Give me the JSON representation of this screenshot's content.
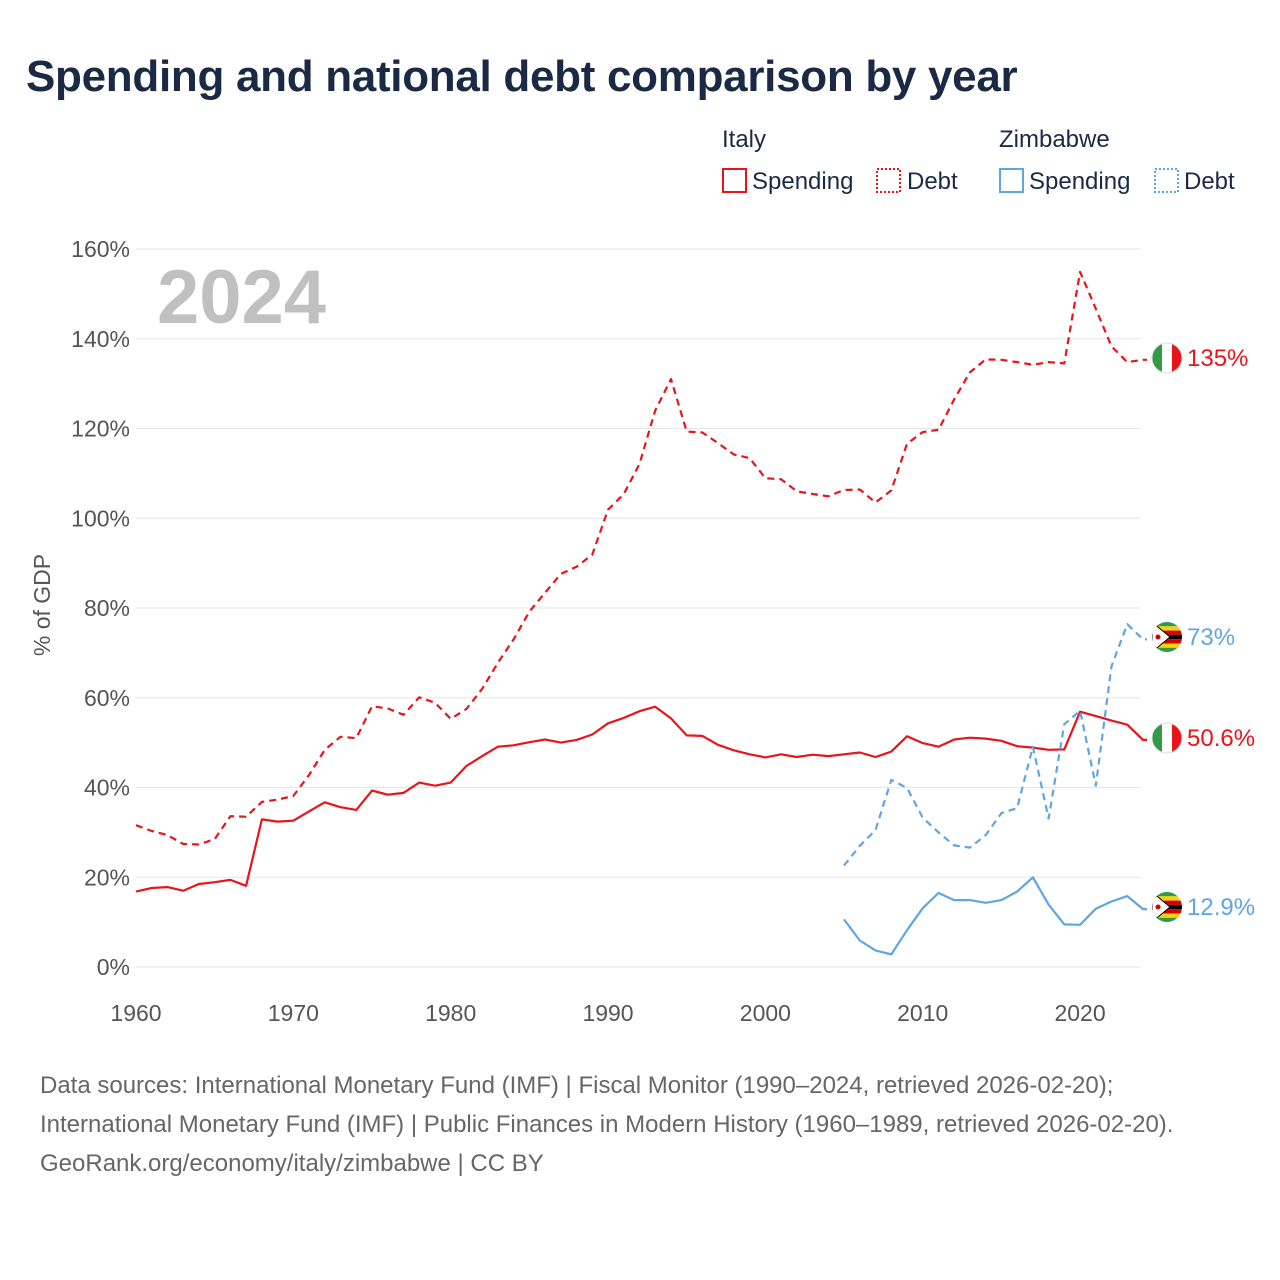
{
  "title": "Spending and national debt comparison by year",
  "year_label": "2024",
  "legend": {
    "groups": [
      {
        "name": "Italy",
        "items": [
          "Spending",
          "Debt"
        ]
      },
      {
        "name": "Zimbabwe",
        "items": [
          "Spending",
          "Debt"
        ]
      }
    ]
  },
  "end_labels": [
    "135%",
    "73%",
    "50.6%",
    "12.9%"
  ],
  "footer": {
    "sources": "Data sources: International Monetary Fund (IMF) | Fiscal Monitor (1990–2024, retrieved 2026-02-20); International Monetary Fund (IMF) | Public Finances in Modern History (1960–1989, retrieved 2026-02-20).",
    "credit": "GeoRank.org/economy/italy/zimbabwe | CC BY"
  },
  "colors": {
    "italy": "#e8141b",
    "zimbabwe": "#5ea6e2",
    "title": "#1b2a44",
    "grid": "#e6e6e6",
    "axis_text": "#555555",
    "year": "#c0c0c0"
  },
  "chart_data": {
    "type": "line",
    "title": "Spending and national debt comparison by year",
    "xlabel": "",
    "ylabel": "% of GDP",
    "xlim": [
      1960,
      2024
    ],
    "ylim": [
      0,
      160
    ],
    "x_ticks": [
      1960,
      1970,
      1980,
      1990,
      2000,
      2010,
      2020
    ],
    "y_ticks": [
      0,
      20,
      40,
      60,
      80,
      100,
      120,
      140,
      160
    ],
    "y_tick_labels": [
      "0%",
      "20%",
      "40%",
      "60%",
      "80%",
      "100%",
      "120%",
      "140%",
      "160%"
    ],
    "x_tick_labels": [
      "1960",
      "1970",
      "1980",
      "1990",
      "2000",
      "2010",
      "2020"
    ],
    "legend_position": "top-right",
    "series": [
      {
        "key": "italy-spending",
        "name": "Italy Spending",
        "country": "italy",
        "style": "solid",
        "end_label": "50.6%",
        "x_start": 1960,
        "values": [
          16.8,
          17.6,
          17.8,
          17.0,
          18.5,
          18.9,
          19.4,
          18.1,
          32.9,
          32.4,
          32.6,
          34.7,
          36.7,
          35.6,
          35.0,
          39.3,
          38.4,
          38.8,
          41.1,
          40.4,
          41.1,
          44.8,
          47.0,
          49.1,
          49.4,
          50.1,
          50.7,
          50.0,
          50.6,
          51.8,
          54.3,
          55.5,
          57.0,
          58.0,
          55.4,
          51.6,
          51.5,
          49.5,
          48.3,
          47.4,
          46.7,
          47.4,
          46.8,
          47.3,
          47.0,
          47.4,
          47.8,
          46.8,
          48.0,
          51.4,
          49.9,
          49.1,
          50.7,
          51.1,
          50.9,
          50.4,
          49.2,
          48.9,
          48.4,
          48.5,
          56.9,
          55.9,
          54.9,
          54.0,
          50.6
        ]
      },
      {
        "key": "italy-debt",
        "name": "Italy Debt",
        "country": "italy",
        "style": "dashed",
        "end_label": "135%",
        "x_start": 1960,
        "values": [
          31.6,
          30.3,
          29.4,
          27.4,
          27.3,
          28.5,
          33.6,
          33.5,
          36.8,
          37.3,
          38.1,
          42.8,
          48.4,
          51.3,
          51.0,
          58.1,
          57.6,
          56.2,
          60.1,
          58.9,
          55.3,
          57.5,
          62.0,
          67.8,
          73.0,
          79.2,
          83.4,
          87.6,
          89.2,
          91.9,
          101.9,
          105.4,
          112.1,
          124.0,
          131.0,
          119.3,
          119.1,
          116.7,
          114.2,
          113.4,
          108.9,
          108.7,
          106.0,
          105.4,
          104.9,
          106.3,
          106.4,
          103.5,
          106.2,
          116.6,
          119.2,
          119.7,
          126.5,
          132.5,
          135.4,
          135.3,
          134.8,
          134.2,
          134.8,
          134.5,
          154.9,
          146.7,
          138.3,
          134.8,
          135.3
        ]
      },
      {
        "key": "zimbabwe-spending",
        "name": "Zimbabwe Spending",
        "country": "zimbabwe",
        "style": "solid",
        "end_label": "12.9%",
        "x_start": 2005,
        "values": [
          10.6,
          5.9,
          3.7,
          2.8,
          8.2,
          13.1,
          16.5,
          14.9,
          14.9,
          14.3,
          14.9,
          16.8,
          20.0,
          13.9,
          9.5,
          9.4,
          13.0,
          14.6,
          15.8,
          12.9
        ]
      },
      {
        "key": "zimbabwe-debt",
        "name": "Zimbabwe Debt",
        "country": "zimbabwe",
        "style": "dashed",
        "end_label": "73%",
        "x_start": 2005,
        "values": [
          22.6,
          27.0,
          30.5,
          41.7,
          39.9,
          33.3,
          30.0,
          27.1,
          26.6,
          29.4,
          34.3,
          35.4,
          49.1,
          33.1,
          54.1,
          57.1,
          40.4,
          67.0,
          76.4,
          73.0
        ]
      }
    ]
  }
}
